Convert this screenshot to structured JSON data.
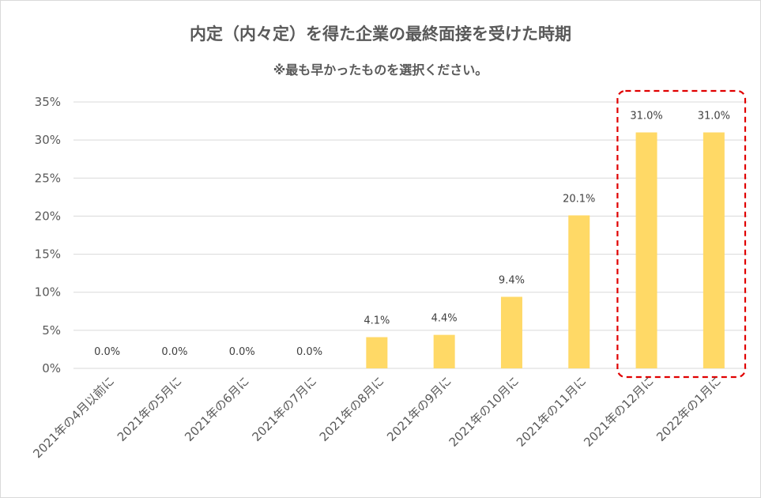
{
  "chart_data": {
    "type": "bar",
    "title": "内定（内々定）を得た企業の最終面接を受けた時期",
    "subtitle": "※最も早かったものを選択ください。",
    "categories": [
      "2021年の4月以前に",
      "2021年の5月に",
      "2021年の6月に",
      "2021年の7月に",
      "2021年の8月に",
      "2021年の9月に",
      "2021年の10月に",
      "2021年の11月に",
      "2021年の12月に",
      "2022年の1月に"
    ],
    "values": [
      0.0,
      0.0,
      0.0,
      0.0,
      4.1,
      4.4,
      9.4,
      20.1,
      31.0,
      31.0
    ],
    "data_labels": [
      "0.0%",
      "0.0%",
      "0.0%",
      "0.0%",
      "4.1%",
      "4.4%",
      "9.4%",
      "20.1%",
      "31.0%",
      "31.0%"
    ],
    "yticks": [
      "0%",
      "5%",
      "10%",
      "15%",
      "20%",
      "25%",
      "30%",
      "35%"
    ],
    "ylim": [
      0,
      35
    ],
    "ytick_step": 5,
    "xlabel": "",
    "ylabel": "",
    "grid": true,
    "legend": "none",
    "bar_color": "#ffd966",
    "grid_color": "#d9d9d9",
    "highlight": {
      "categories": [
        "2021年の12月に",
        "2022年の1月に"
      ],
      "style": "dashed-rounded-box",
      "color": "#e00000"
    }
  }
}
